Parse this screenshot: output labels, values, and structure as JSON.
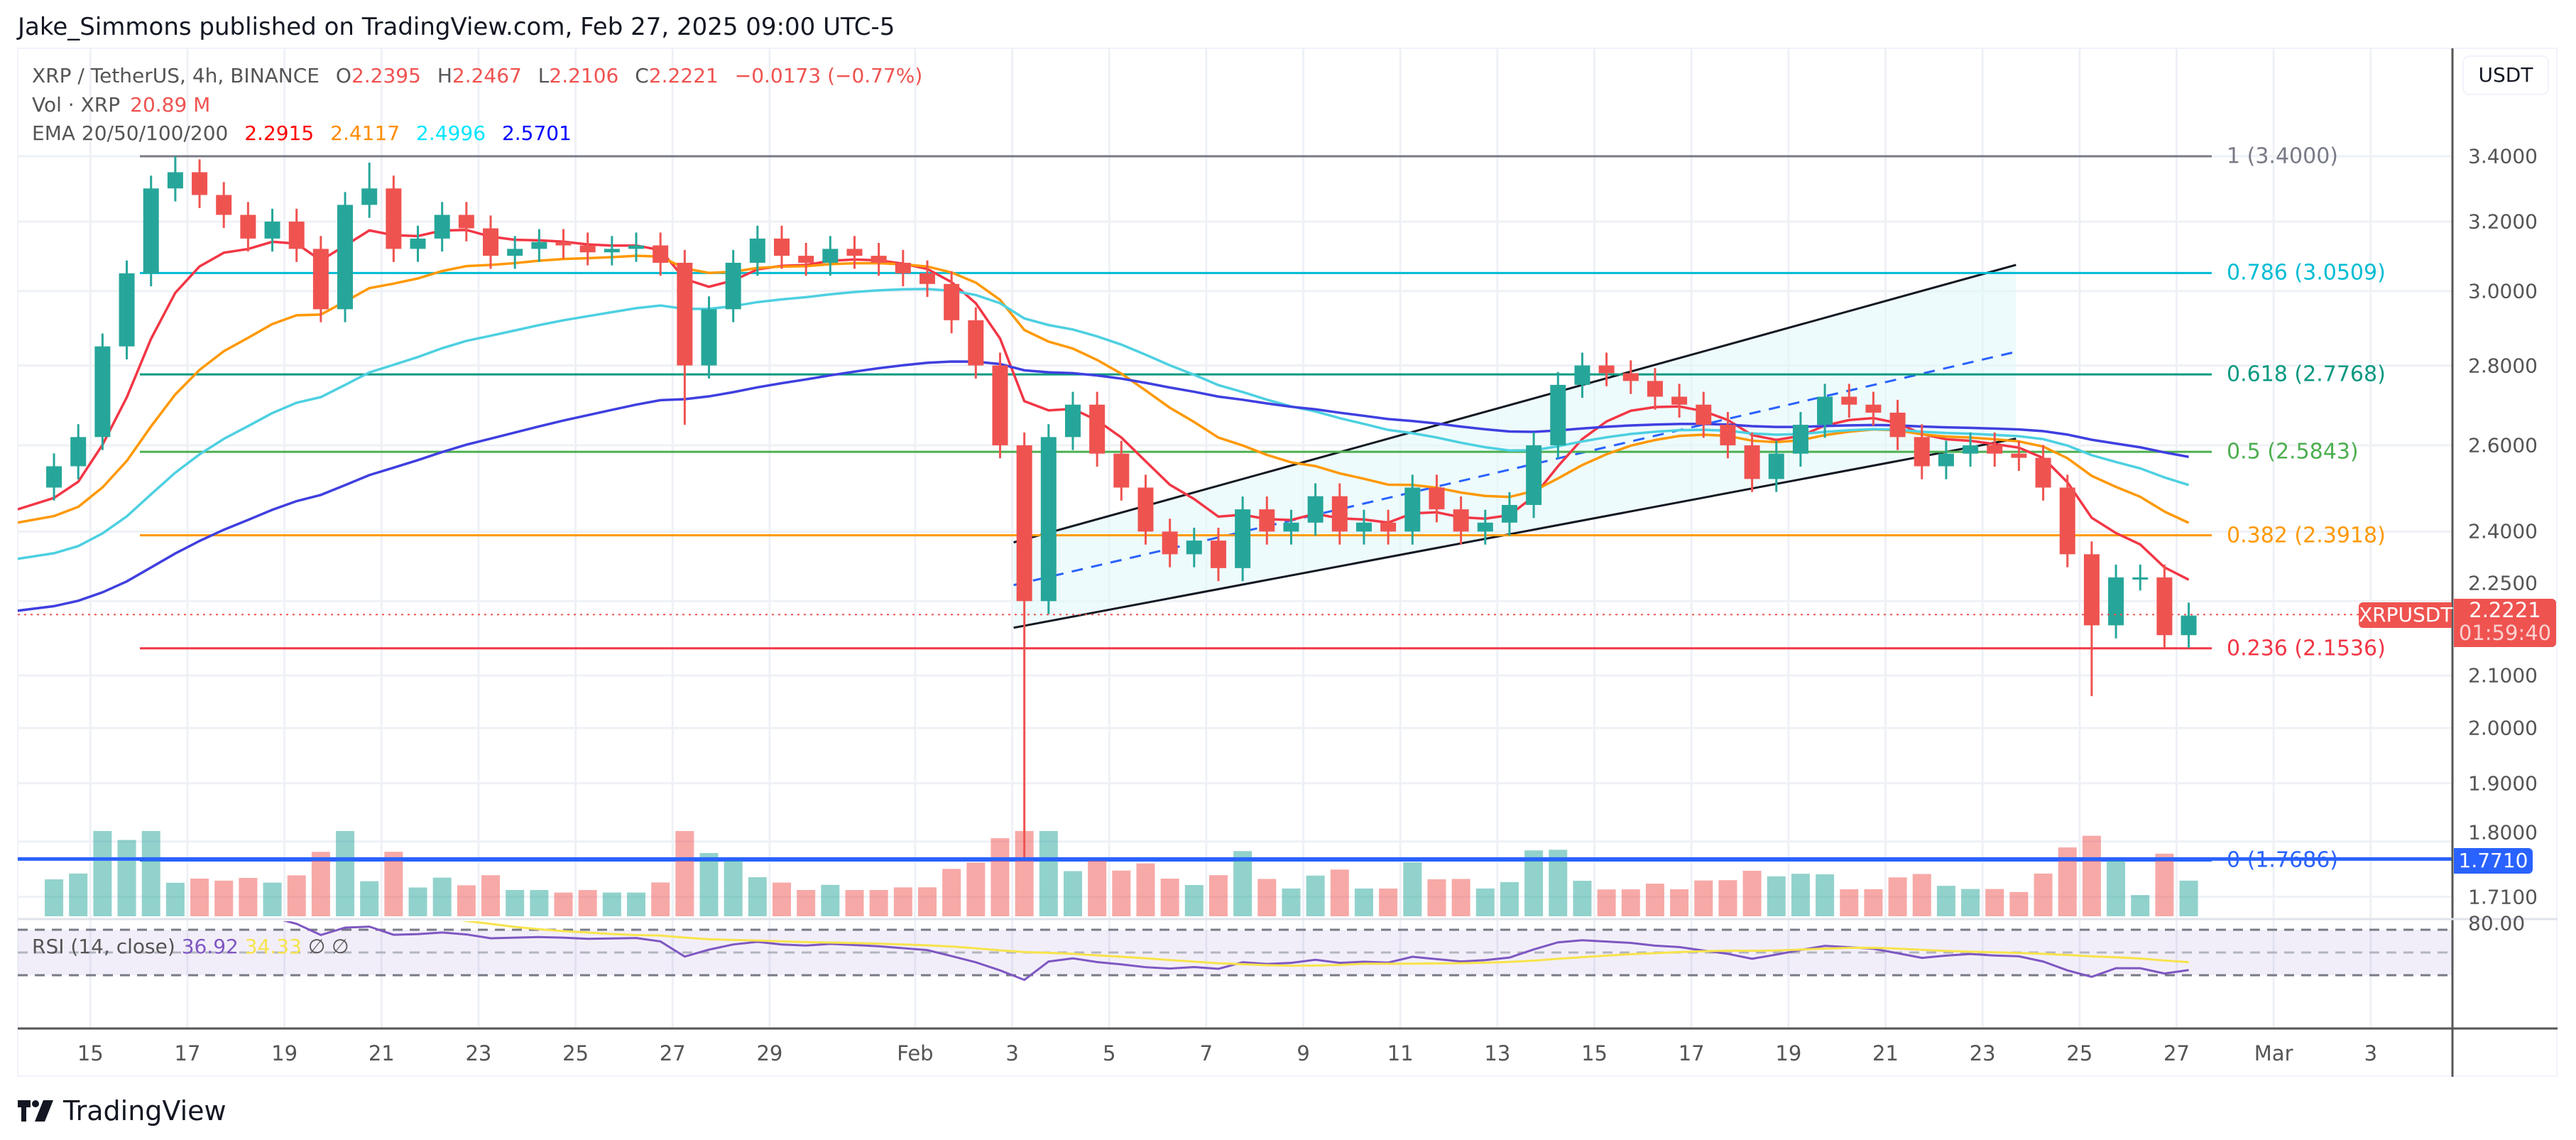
{
  "meta": {
    "published": "Jake_Simmons published on TradingView.com, Feb 27, 2025 09:00 UTC-5"
  },
  "legend": {
    "symbol": "XRP / TetherUS, 4h, BINANCE",
    "o_label": "O",
    "o": "2.2395",
    "h_label": "H",
    "h": "2.2467",
    "l_label": "L",
    "l": "2.2106",
    "c_label": "C",
    "c": "2.2221",
    "change": "−0.0173 (−0.77%)",
    "vol_label": "Vol · XRP",
    "vol": "20.89 M",
    "ema_label": "EMA 20/50/100/200",
    "ema_values": [
      "2.2915",
      "2.4117",
      "2.4996",
      "2.5701"
    ],
    "ema_colors": [
      "#ff0000",
      "#ff8c00",
      "#00ffff",
      "#0000ff"
    ]
  },
  "rsi": {
    "label": "RSI (14, close)",
    "value": "36.92",
    "ma": "34.33",
    "na1": "∅",
    "na2": "∅",
    "color": "#7e57c2",
    "ma_color": "#f7e34b",
    "axis_label": "80.00"
  },
  "price_axis": {
    "currency": "USDT",
    "ticks": [
      "3.4000",
      "3.2000",
      "3.0000",
      "2.8000",
      "2.6000",
      "2.4000",
      "2.2500",
      "2.1000",
      "2.0000",
      "1.9000",
      "1.8000",
      "1.7100"
    ]
  },
  "current": {
    "symbol": "XRPUSDT",
    "price": "2.2221",
    "countdown": "01:59:40",
    "color": "#ef5350"
  },
  "hline": {
    "price": "1.7710",
    "color": "#2962ff"
  },
  "fib": [
    {
      "label": "1 (3.4000)",
      "price": 3.4,
      "color": "#787b86"
    },
    {
      "label": "0.786 (3.0509)",
      "price": 3.0509,
      "color": "#00bcd4"
    },
    {
      "label": "0.618 (2.7768)",
      "price": 2.7768,
      "color": "#089981"
    },
    {
      "label": "0.5 (2.5843)",
      "price": 2.5843,
      "color": "#4caf50"
    },
    {
      "label": "0.382 (2.3918)",
      "price": 2.3918,
      "color": "#ff9800"
    },
    {
      "label": "0.236 (2.1536)",
      "price": 2.1536,
      "color": "#f23645"
    },
    {
      "label": "0 (1.7686)",
      "price": 1.7686,
      "color": "#2962ff"
    }
  ],
  "time_axis": [
    {
      "label": "15",
      "date": "2025-01-15"
    },
    {
      "label": "17",
      "date": "2025-01-17"
    },
    {
      "label": "19",
      "date": "2025-01-19"
    },
    {
      "label": "21",
      "date": "2025-01-21"
    },
    {
      "label": "23",
      "date": "2025-01-23"
    },
    {
      "label": "25",
      "date": "2025-01-25"
    },
    {
      "label": "27",
      "date": "2025-01-27"
    },
    {
      "label": "29",
      "date": "2025-01-29"
    },
    {
      "label": "Feb",
      "date": "2025-02-01"
    },
    {
      "label": "3",
      "date": "2025-02-03"
    },
    {
      "label": "5",
      "date": "2025-02-05"
    },
    {
      "label": "7",
      "date": "2025-02-07"
    },
    {
      "label": "9",
      "date": "2025-02-09"
    },
    {
      "label": "11",
      "date": "2025-02-11"
    },
    {
      "label": "13",
      "date": "2025-02-13"
    },
    {
      "label": "15",
      "date": "2025-02-15"
    },
    {
      "label": "17",
      "date": "2025-02-17"
    },
    {
      "label": "19",
      "date": "2025-02-19"
    },
    {
      "label": "21",
      "date": "2025-02-21"
    },
    {
      "label": "23",
      "date": "2025-02-23"
    },
    {
      "label": "25",
      "date": "2025-02-25"
    },
    {
      "label": "27",
      "date": "2025-02-27"
    },
    {
      "label": "Mar",
      "date": "2025-03-01"
    },
    {
      "label": "3",
      "date": "2025-03-03"
    }
  ],
  "footer": {
    "brand": "TradingView"
  },
  "chart_data": {
    "type": "candlestick",
    "scale": "log",
    "interval": "12h approximation of 4h chart",
    "start": "2025-01-14",
    "first_open": 2.5,
    "closes": [
      2.55,
      2.62,
      2.85,
      3.05,
      3.3,
      3.35,
      3.28,
      3.22,
      3.15,
      3.2,
      3.12,
      2.95,
      3.25,
      3.3,
      3.12,
      3.15,
      3.22,
      3.18,
      3.1,
      3.12,
      3.14,
      3.13,
      3.11,
      3.12,
      3.13,
      3.08,
      2.8,
      2.95,
      3.08,
      3.15,
      3.1,
      3.08,
      3.12,
      3.1,
      3.08,
      3.05,
      3.02,
      2.92,
      2.8,
      2.6,
      2.25,
      2.62,
      2.7,
      2.58,
      2.5,
      2.4,
      2.35,
      2.38,
      2.32,
      2.45,
      2.4,
      2.42,
      2.48,
      2.4,
      2.42,
      2.4,
      2.5,
      2.45,
      2.4,
      2.42,
      2.46,
      2.6,
      2.75,
      2.8,
      2.78,
      2.76,
      2.72,
      2.7,
      2.65,
      2.6,
      2.52,
      2.58,
      2.65,
      2.72,
      2.7,
      2.68,
      2.62,
      2.55,
      2.58,
      2.6,
      2.58,
      2.57,
      2.5,
      2.35,
      2.2,
      2.3,
      2.3,
      2.18,
      2.22
    ],
    "notable_extremes": [
      {
        "index": 5,
        "high": 3.4
      },
      {
        "index": 13,
        "high": 3.38
      },
      {
        "index": 26,
        "low": 2.65
      },
      {
        "index": 40,
        "low": 1.7686
      },
      {
        "index": 84,
        "low": 2.06
      }
    ],
    "ylim": [
      1.7,
      3.5
    ],
    "up_color": "#26a69a",
    "down_color": "#ef5350"
  }
}
